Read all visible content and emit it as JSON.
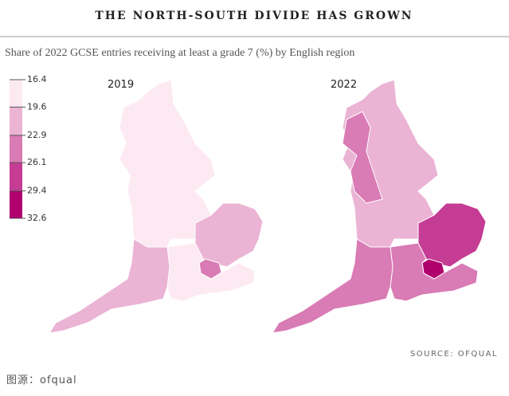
{
  "title": "THE NORTH-SOUTH DIVIDE HAS GROWN",
  "subtitle": "Share of 2022 GCSE entries receiving at least a grade 7 (%) by English region",
  "legend": {
    "ticks": [
      16.4,
      19.6,
      22.9,
      26.1,
      29.4,
      32.6
    ],
    "colors": [
      "#fde9f2",
      "#ebb3d4",
      "#d97bb5",
      "#c53c94",
      "#b0006e"
    ]
  },
  "maps": [
    {
      "label": "2019"
    },
    {
      "label": "2022"
    }
  ],
  "source": "SOURCE: OFQUAL",
  "footer": "图源：ofqual"
}
